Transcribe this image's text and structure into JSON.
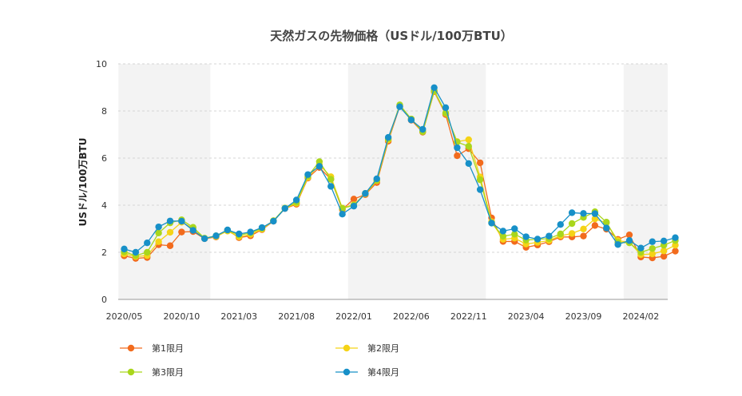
{
  "chart_data": {
    "type": "line",
    "title": "天然ガスの先物価格（USドル/100万BTU）",
    "xlabel": "",
    "ylabel": "USドル/100万BTU",
    "ylim": [
      0,
      10
    ],
    "yticks": [
      0,
      2,
      4,
      6,
      8,
      10
    ],
    "grid": true,
    "legend_position": "bottom-left",
    "xtick_labels": [
      "2020/05",
      "2020/10",
      "2021/03",
      "2021/08",
      "2022/01",
      "2022/06",
      "2022/11",
      "2023/04",
      "2023/09",
      "2024/02"
    ],
    "x": [
      "2020/05",
      "2020/06",
      "2020/07",
      "2020/08",
      "2020/09",
      "2020/10",
      "2020/11",
      "2020/12",
      "2021/01",
      "2021/02",
      "2021/03",
      "2021/04",
      "2021/05",
      "2021/06",
      "2021/07",
      "2021/08",
      "2021/09",
      "2021/10",
      "2021/11",
      "2021/12",
      "2022/01",
      "2022/02",
      "2022/03",
      "2022/04",
      "2022/05",
      "2022/06",
      "2022/07",
      "2022/08",
      "2022/09",
      "2022/10",
      "2022/11",
      "2022/12",
      "2023/01",
      "2023/02",
      "2023/03",
      "2023/04",
      "2023/05",
      "2023/06",
      "2023/07",
      "2023/08",
      "2023/09",
      "2023/10",
      "2023/11",
      "2023/12",
      "2024/01",
      "2024/02",
      "2024/03",
      "2024/04",
      "2024/05"
    ],
    "series": [
      {
        "name": "第1限月",
        "color": "#f26b1d",
        "values": [
          1.85,
          1.74,
          1.78,
          2.32,
          2.28,
          2.86,
          2.88,
          2.58,
          2.65,
          2.94,
          2.62,
          2.7,
          2.96,
          3.32,
          3.86,
          4.04,
          5.15,
          5.6,
          5.1,
          3.82,
          4.26,
          4.45,
          4.96,
          6.72,
          8.2,
          7.61,
          7.1,
          8.82,
          7.85,
          6.1,
          6.4,
          5.8,
          3.46,
          2.46,
          2.46,
          2.21,
          2.31,
          2.45,
          2.65,
          2.65,
          2.69,
          3.14,
          2.98,
          2.55,
          2.74,
          1.8,
          1.76,
          1.83,
          2.05
        ]
      },
      {
        "name": "第2限月",
        "color": "#f5d316",
        "values": [
          1.93,
          1.82,
          1.86,
          2.45,
          2.85,
          3.28,
          3.02,
          2.59,
          2.67,
          2.9,
          2.66,
          2.76,
          2.98,
          3.34,
          3.87,
          4.08,
          5.18,
          5.72,
          5.21,
          3.88,
          4.02,
          4.48,
          5.04,
          6.78,
          8.24,
          7.66,
          7.14,
          8.84,
          7.9,
          6.7,
          6.78,
          5.2,
          3.3,
          2.55,
          2.6,
          2.35,
          2.42,
          2.5,
          2.7,
          2.8,
          2.99,
          3.42,
          3.25,
          2.5,
          2.42,
          1.9,
          1.93,
          2.06,
          2.3
        ]
      },
      {
        "name": "第3限月",
        "color": "#a9d61c",
        "values": [
          2.02,
          1.86,
          2.0,
          2.82,
          3.25,
          3.38,
          3.06,
          2.6,
          2.7,
          2.94,
          2.73,
          2.82,
          3.02,
          3.34,
          3.88,
          4.12,
          5.23,
          5.85,
          5.1,
          3.86,
          4.0,
          4.5,
          5.06,
          6.82,
          8.26,
          7.66,
          7.12,
          8.86,
          7.92,
          6.68,
          6.5,
          5.08,
          3.24,
          2.68,
          2.77,
          2.52,
          2.55,
          2.58,
          2.78,
          3.22,
          3.48,
          3.72,
          3.28,
          2.42,
          2.4,
          2.0,
          2.16,
          2.3,
          2.5
        ]
      },
      {
        "name": "第4限月",
        "color": "#1790c8",
        "values": [
          2.14,
          2.0,
          2.4,
          3.08,
          3.33,
          3.32,
          2.93,
          2.58,
          2.7,
          2.95,
          2.78,
          2.86,
          3.05,
          3.32,
          3.86,
          4.22,
          5.3,
          5.65,
          4.8,
          3.62,
          3.96,
          4.5,
          5.12,
          6.88,
          8.18,
          7.62,
          7.22,
          8.99,
          8.14,
          6.44,
          5.77,
          4.66,
          3.24,
          2.9,
          3.0,
          2.66,
          2.56,
          2.69,
          3.18,
          3.68,
          3.65,
          3.64,
          3.03,
          2.33,
          2.5,
          2.18,
          2.45,
          2.48,
          2.62
        ]
      }
    ]
  }
}
